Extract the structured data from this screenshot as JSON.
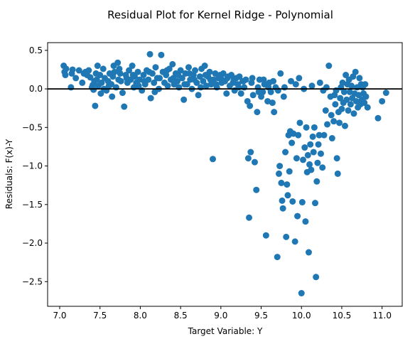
{
  "chart_data": {
    "type": "scatter",
    "title": "Residual Plot for Kernel Ridge - Polynomial",
    "xlabel": "Target Variable: Y",
    "ylabel": "Residuals: F(x)-Y",
    "xlim": [
      6.85,
      11.25
    ],
    "ylim": [
      -2.82,
      0.6
    ],
    "xticks": [
      7.0,
      7.5,
      8.0,
      8.5,
      9.0,
      9.5,
      10.0,
      10.5,
      11.0
    ],
    "xtick_labels": [
      "7.0",
      "7.5",
      "8.0",
      "8.5",
      "9.0",
      "9.5",
      "10.0",
      "10.5",
      "11.0"
    ],
    "yticks": [
      0.5,
      0.0,
      -0.5,
      -1.0,
      -1.5,
      -2.0,
      -2.5
    ],
    "ytick_labels": [
      "0.5",
      "0.0",
      "−0.5",
      "−1.0",
      "−1.5",
      "−2.0",
      "−2.5"
    ],
    "reference_line_y": 0.0,
    "grid": false,
    "point_color": "#1f77b4",
    "line_color": "#000000",
    "points": [
      [
        7.05,
        0.3
      ],
      [
        7.06,
        0.22
      ],
      [
        7.07,
        0.18
      ],
      [
        7.08,
        0.26
      ],
      [
        7.14,
        0.02
      ],
      [
        7.15,
        0.2
      ],
      [
        7.16,
        0.25
      ],
      [
        7.24,
        0.24
      ],
      [
        7.3,
        0.2
      ],
      [
        7.32,
        0.22
      ],
      [
        7.36,
        0.24
      ],
      [
        7.38,
        0.15
      ],
      [
        7.4,
        0.02
      ],
      [
        7.41,
        0.05
      ],
      [
        7.42,
        -0.01
      ],
      [
        7.43,
        0.1
      ],
      [
        7.44,
        -0.22
      ],
      [
        7.45,
        0.2
      ],
      [
        7.46,
        0.12
      ],
      [
        7.48,
        0.04
      ],
      [
        7.5,
        0.18
      ],
      [
        7.51,
        -0.06
      ],
      [
        7.52,
        0.08
      ],
      [
        7.54,
        0.26
      ],
      [
        7.56,
        0.14
      ],
      [
        7.58,
        -0.02
      ],
      [
        7.6,
        0.1
      ],
      [
        7.62,
        0.2
      ],
      [
        7.64,
        0.06
      ],
      [
        7.65,
        -0.1
      ],
      [
        7.66,
        0.16
      ],
      [
        7.68,
        0.22
      ],
      [
        7.7,
        0.02
      ],
      [
        7.72,
        0.34
      ],
      [
        7.73,
        0.12
      ],
      [
        7.74,
        0.26
      ],
      [
        7.76,
        0.1
      ],
      [
        7.78,
        -0.05
      ],
      [
        7.8,
        -0.23
      ],
      [
        7.82,
        0.18
      ],
      [
        7.84,
        0.08
      ],
      [
        7.86,
        0.24
      ],
      [
        7.88,
        0.12
      ],
      [
        7.9,
        0.3
      ],
      [
        7.92,
        0.02
      ],
      [
        7.93,
        0.16
      ],
      [
        7.95,
        0.08
      ],
      [
        7.97,
        0.22
      ],
      [
        7.99,
        0.12
      ],
      [
        8.02,
        -0.02
      ],
      [
        8.04,
        0.18
      ],
      [
        8.06,
        0.06
      ],
      [
        8.08,
        0.24
      ],
      [
        8.1,
        0.12
      ],
      [
        8.12,
        0.45
      ],
      [
        8.13,
        -0.12
      ],
      [
        8.15,
        0.2
      ],
      [
        8.17,
        0.08
      ],
      [
        8.19,
        0.28
      ],
      [
        8.21,
        0.14
      ],
      [
        8.23,
        0.0
      ],
      [
        8.26,
        0.44
      ],
      [
        8.28,
        0.22
      ],
      [
        8.3,
        0.08
      ],
      [
        8.32,
        0.18
      ],
      [
        8.34,
        0.04
      ],
      [
        8.36,
        0.26
      ],
      [
        8.38,
        0.12
      ],
      [
        8.4,
        0.32
      ],
      [
        8.42,
        0.06
      ],
      [
        8.44,
        0.2
      ],
      [
        8.46,
        0.1
      ],
      [
        8.48,
        0.02
      ],
      [
        8.5,
        0.24
      ],
      [
        8.52,
        0.14
      ],
      [
        8.54,
        -0.14
      ],
      [
        8.56,
        0.2
      ],
      [
        8.58,
        0.06
      ],
      [
        8.6,
        0.28
      ],
      [
        8.62,
        0.12
      ],
      [
        8.64,
        0.0
      ],
      [
        8.66,
        0.18
      ],
      [
        8.68,
        0.24
      ],
      [
        8.7,
        0.08
      ],
      [
        8.72,
        -0.08
      ],
      [
        8.74,
        0.16
      ],
      [
        8.76,
        0.26
      ],
      [
        8.78,
        0.1
      ],
      [
        8.8,
        0.3
      ],
      [
        8.82,
        0.04
      ],
      [
        8.84,
        0.16
      ],
      [
        8.86,
        0.22
      ],
      [
        8.88,
        0.06
      ],
      [
        8.9,
        -0.91
      ],
      [
        8.91,
        0.12
      ],
      [
        8.93,
        0.2
      ],
      [
        8.95,
        0.02
      ],
      [
        8.97,
        0.14
      ],
      [
        8.99,
        0.18
      ],
      [
        9.01,
        0.08
      ],
      [
        9.03,
        0.2
      ],
      [
        9.05,
        0.1
      ],
      [
        9.07,
        -0.06
      ],
      [
        9.09,
        0.16
      ],
      [
        9.11,
        0.04
      ],
      [
        9.13,
        0.18
      ],
      [
        9.15,
        0.08
      ],
      [
        9.17,
        -0.02
      ],
      [
        9.19,
        0.14
      ],
      [
        9.21,
        0.06
      ],
      [
        9.23,
        0.16
      ],
      [
        9.25,
        -0.06
      ],
      [
        9.27,
        0.1
      ],
      [
        9.29,
        0.02
      ],
      [
        9.31,
        0.12
      ],
      [
        9.33,
        -0.16
      ],
      [
        9.34,
        -0.9
      ],
      [
        9.35,
        -1.67
      ],
      [
        9.36,
        -0.22
      ],
      [
        9.37,
        -0.82
      ],
      [
        9.38,
        0.08
      ],
      [
        9.4,
        -0.08
      ],
      [
        9.42,
        -0.95
      ],
      [
        9.44,
        -1.31
      ],
      [
        9.45,
        -0.3
      ],
      [
        9.46,
        0.02
      ],
      [
        9.48,
        0.12
      ],
      [
        9.5,
        -0.1
      ],
      [
        9.52,
        -0.04
      ],
      [
        9.54,
        0.06
      ],
      [
        9.56,
        -1.9
      ],
      [
        9.58,
        -0.16
      ],
      [
        9.6,
        0.08
      ],
      [
        9.62,
        -0.04
      ],
      [
        9.64,
        -0.18
      ],
      [
        9.66,
        -0.3
      ],
      [
        9.68,
        0.02
      ],
      [
        9.7,
        -2.18
      ],
      [
        9.72,
        -1.1
      ],
      [
        9.73,
        -1.0
      ],
      [
        9.75,
        -1.22
      ],
      [
        9.76,
        -1.45
      ],
      [
        9.77,
        -1.55
      ],
      [
        9.78,
        -0.1
      ],
      [
        9.8,
        -0.82
      ],
      [
        9.81,
        -1.92
      ],
      [
        9.82,
        -1.24
      ],
      [
        9.83,
        -1.38
      ],
      [
        9.84,
        -0.6
      ],
      [
        9.85,
        -1.07
      ],
      [
        9.86,
        -0.55
      ],
      [
        9.88,
        -0.7
      ],
      [
        9.89,
        -1.46
      ],
      [
        9.9,
        -0.58
      ],
      [
        9.92,
        -1.98
      ],
      [
        9.94,
        -0.9
      ],
      [
        9.95,
        -1.65
      ],
      [
        9.96,
        -0.6
      ],
      [
        9.98,
        -0.44
      ],
      [
        10.0,
        -2.65
      ],
      [
        10.01,
        -1.47
      ],
      [
        10.02,
        -0.92
      ],
      [
        10.04,
        -0.76
      ],
      [
        10.05,
        -1.72
      ],
      [
        10.06,
        -0.5
      ],
      [
        10.07,
        -1.08
      ],
      [
        10.08,
        -0.86
      ],
      [
        10.09,
        -2.12
      ],
      [
        10.1,
        -0.98
      ],
      [
        10.11,
        -0.72
      ],
      [
        10.12,
        -1.05
      ],
      [
        10.14,
        -0.62
      ],
      [
        10.15,
        -0.82
      ],
      [
        10.16,
        -0.5
      ],
      [
        10.17,
        -1.48
      ],
      [
        10.18,
        -2.44
      ],
      [
        10.19,
        -1.2
      ],
      [
        10.2,
        -0.96
      ],
      [
        10.21,
        -0.72
      ],
      [
        10.22,
        -0.6
      ],
      [
        10.24,
        -0.84
      ],
      [
        10.26,
        -1.02
      ],
      [
        10.28,
        -0.6
      ],
      [
        10.3,
        -0.28
      ],
      [
        10.32,
        -0.46
      ],
      [
        10.34,
        0.3
      ],
      [
        10.36,
        -0.1
      ],
      [
        10.37,
        -0.34
      ],
      [
        10.38,
        -0.64
      ],
      [
        10.4,
        -0.42
      ],
      [
        10.41,
        -0.08
      ],
      [
        10.42,
        -0.2
      ],
      [
        10.43,
        -0.02
      ],
      [
        10.44,
        -0.9
      ],
      [
        10.45,
        -1.1
      ],
      [
        10.46,
        -0.3
      ],
      [
        10.47,
        -0.44
      ],
      [
        10.48,
        -0.12
      ],
      [
        10.49,
        0.02
      ],
      [
        10.5,
        -0.26
      ],
      [
        10.51,
        0.08
      ],
      [
        10.52,
        -0.18
      ],
      [
        10.53,
        -0.04
      ],
      [
        10.54,
        -0.48
      ],
      [
        10.55,
        0.18
      ],
      [
        10.56,
        -0.14
      ],
      [
        10.57,
        0.06
      ],
      [
        10.58,
        -0.28
      ],
      [
        10.59,
        0.12
      ],
      [
        10.6,
        -0.04
      ],
      [
        10.61,
        -0.2
      ],
      [
        10.62,
        0.04
      ],
      [
        10.63,
        -0.12
      ],
      [
        10.64,
        0.16
      ],
      [
        10.65,
        -0.32
      ],
      [
        10.66,
        -0.06
      ],
      [
        10.67,
        0.22
      ],
      [
        10.68,
        -0.16
      ],
      [
        10.69,
        0.02
      ],
      [
        10.7,
        -0.24
      ],
      [
        10.71,
        -0.08
      ],
      [
        10.72,
        0.14
      ],
      [
        10.73,
        -0.2
      ],
      [
        10.74,
        0.06
      ],
      [
        10.75,
        -0.14
      ],
      [
        10.76,
        0.02
      ],
      [
        10.77,
        -0.06
      ],
      [
        10.78,
        -0.18
      ],
      [
        10.79,
        0.06
      ],
      [
        10.8,
        -0.1
      ],
      [
        10.82,
        -0.24
      ],
      [
        10.95,
        -0.38
      ],
      [
        11.0,
        -0.16
      ],
      [
        11.05,
        -0.05
      ],
      [
        7.2,
        0.14
      ],
      [
        7.28,
        0.08
      ],
      [
        7.34,
        0.18
      ],
      [
        7.47,
        0.3
      ],
      [
        7.55,
        0.0
      ],
      [
        7.61,
        0.04
      ],
      [
        7.67,
        0.3
      ],
      [
        7.75,
        0.2
      ],
      [
        7.83,
        0.14
      ],
      [
        7.91,
        0.18
      ],
      [
        7.98,
        0.04
      ],
      [
        8.05,
        0.1
      ],
      [
        8.11,
        0.22
      ],
      [
        8.18,
        -0.04
      ],
      [
        8.24,
        0.14
      ],
      [
        8.33,
        0.24
      ],
      [
        8.41,
        0.14
      ],
      [
        8.47,
        0.18
      ],
      [
        8.55,
        0.06
      ],
      [
        8.61,
        0.2
      ],
      [
        8.67,
        0.12
      ],
      [
        8.75,
        0.02
      ],
      [
        8.81,
        0.18
      ],
      [
        8.87,
        0.12
      ],
      [
        8.94,
        0.06
      ],
      [
        9.0,
        0.14
      ],
      [
        9.08,
        0.14
      ],
      [
        9.16,
        0.12
      ],
      [
        9.22,
        0.02
      ],
      [
        9.28,
        0.1
      ],
      [
        9.39,
        0.14
      ],
      [
        9.47,
        -0.04
      ],
      [
        9.53,
        0.12
      ],
      [
        9.59,
        0.02
      ],
      [
        9.65,
        0.1
      ],
      [
        9.71,
        -0.02
      ],
      [
        9.74,
        0.2
      ],
      [
        9.79,
        0.02
      ],
      [
        9.87,
        0.1
      ],
      [
        9.93,
        0.06
      ],
      [
        9.97,
        0.14
      ],
      [
        10.03,
        0.0
      ],
      [
        10.13,
        0.04
      ],
      [
        10.23,
        0.08
      ],
      [
        10.27,
        -0.02
      ],
      [
        10.31,
        0.02
      ]
    ]
  }
}
